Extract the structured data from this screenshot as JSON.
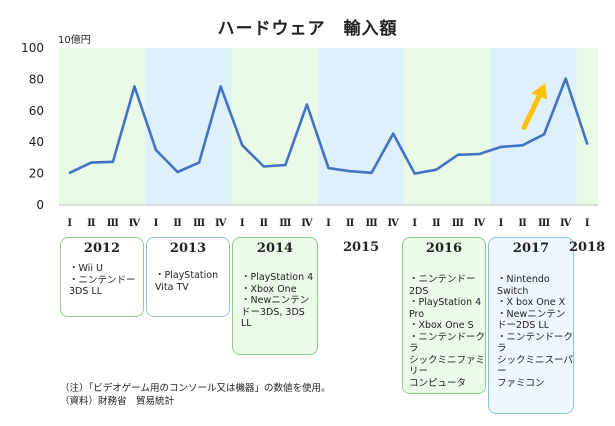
{
  "header": {
    "title": "ハードウェア　輸入額",
    "unit": "10億円"
  },
  "chart_data": {
    "type": "line",
    "title": "ハードウェア　輸入額",
    "ylabel": "10億円",
    "ylim": [
      0,
      100
    ],
    "yticks": [
      0,
      20,
      40,
      60,
      80,
      100
    ],
    "quarter_labels": [
      "Ⅰ",
      "Ⅱ",
      "Ⅲ",
      "Ⅳ",
      "Ⅰ",
      "Ⅱ",
      "Ⅲ",
      "Ⅳ",
      "Ⅰ",
      "Ⅱ",
      "Ⅲ",
      "Ⅳ",
      "Ⅰ",
      "Ⅱ",
      "Ⅲ",
      "Ⅳ",
      "Ⅰ",
      "Ⅱ",
      "Ⅲ",
      "Ⅳ",
      "Ⅰ",
      "Ⅱ",
      "Ⅲ",
      "Ⅳ",
      "Ⅰ"
    ],
    "years": [
      "2012",
      "2013",
      "2014",
      "2015",
      "2016",
      "2017",
      "2018"
    ],
    "series": [
      {
        "values": [
          20.5,
          27,
          27.5,
          75.5,
          35,
          21,
          27,
          75.5,
          38,
          24.5,
          25.5,
          64,
          23.5,
          21.5,
          20.5,
          45.5,
          20,
          22.5,
          32,
          32.5,
          37,
          38,
          45,
          80.5,
          39
        ]
      }
    ],
    "grid": false,
    "line_color": "#4472c4",
    "band_colors": [
      "#e9fbe7",
      "#def0fc"
    ],
    "arrow": {
      "from_index": 22,
      "color": "#ffc000"
    }
  },
  "console_boxes": [
    {
      "year": "2012",
      "items": [
        "・Wii U",
        "・ニンテンドー\n3DS LL"
      ],
      "border": "#8fd18a",
      "bg": "#ffffff"
    },
    {
      "year": "2013",
      "items": [
        "・PlayStation\nVita TV"
      ],
      "border": "#8fc3e6",
      "bg": "#ffffff"
    },
    {
      "year": "2014",
      "items": [
        "・PlayStation 4",
        "・Xbox One",
        "・Newニンテン\nドー3DS, 3DS\nLL"
      ],
      "border": "#8fd18a",
      "bg": "#eafbe8"
    },
    {
      "year": "2016",
      "items": [
        "・ニンテンドー\n2DS",
        "・PlayStation 4\nPro",
        "・Xbox One S",
        "・ニンテンドークラ\nシックミニファミリー\nコンピュータ"
      ],
      "border": "#8fd18a",
      "bg": "#eafbe8"
    },
    {
      "year": "2017",
      "items": [
        "・Nintendo\nSwitch",
        "・X box One X",
        "・Newニンテン\nドー2DS LL",
        "・ニンテンドークラ\nシックミニスーパー\nファミコン"
      ],
      "border": "#8fc3e6",
      "bg": "#eef7fd"
    }
  ],
  "plain_years": [
    "2015",
    "2018"
  ],
  "notes": [
    "（注）「ビデオゲーム用のコンソール又は機器」の数値を使用。",
    "（資料）財務省　貿易統計"
  ]
}
